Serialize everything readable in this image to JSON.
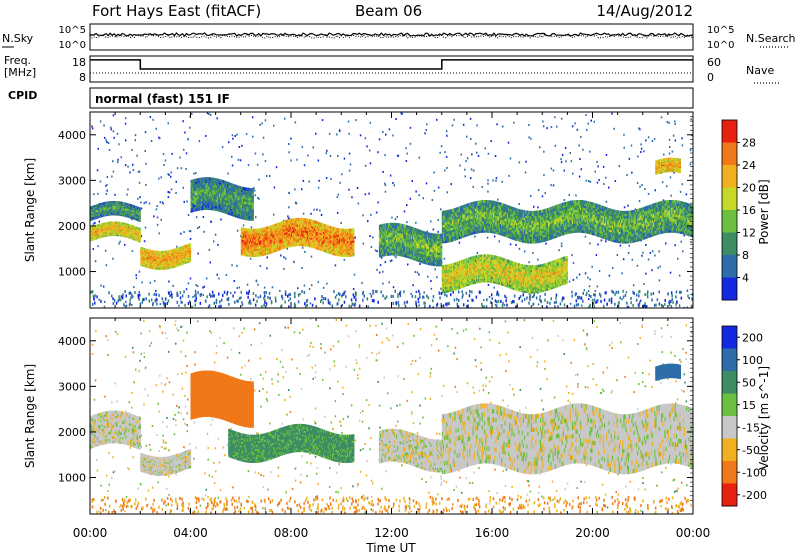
{
  "header": {
    "station": "Fort Hays East (fitACF)",
    "beam": "Beam 06",
    "date": "14/Aug/2012"
  },
  "panels": {
    "nsky": {
      "left_label": "N.Sky",
      "right_label": "N.Search",
      "left_ticks": [
        "10^5",
        "10^0"
      ],
      "right_ticks": [
        "10^5",
        "10^0"
      ]
    },
    "freq": {
      "left_label_top": "Freq.",
      "left_label_bottom": "[MHz]",
      "right_label": "Nave",
      "left_ticks": [
        "18",
        "8"
      ],
      "right_ticks": [
        "60",
        "0"
      ]
    },
    "cpid": {
      "label": "CPID",
      "text": "normal (fast) 151 IF"
    }
  },
  "chart_data": [
    {
      "type": "line",
      "name": "sky-noise-and-search-noise",
      "x_unit": "hours UT",
      "series": [
        {
          "name": "N.Sky",
          "style": "solid",
          "approx_level_fraction": 0.85
        },
        {
          "name": "N.Search",
          "style": "dotted",
          "approx_level_fraction": 0.85
        }
      ]
    },
    {
      "type": "line",
      "name": "frequency-and-nave",
      "ylim_left": [
        8,
        18
      ],
      "ylim_right": [
        0,
        60
      ],
      "series": [
        {
          "name": "Freq.",
          "style": "solid",
          "points": [
            [
              0,
              16.5
            ],
            [
              2.0,
              16.5
            ],
            [
              2.0,
              13.0
            ],
            [
              14.0,
              13.0
            ],
            [
              14.0,
              16.5
            ],
            [
              24,
              16.5
            ]
          ]
        },
        {
          "name": "Nave",
          "style": "dotted",
          "points": [
            [
              0,
              16
            ],
            [
              2.0,
              16
            ],
            [
              2.0,
              16
            ],
            [
              24,
              16
            ]
          ]
        }
      ]
    },
    {
      "type": "heatmap",
      "name": "power",
      "xlabel": "",
      "ylabel": "Slant Range [km]",
      "ylim": [
        200,
        4500
      ],
      "yticks": [
        "1000",
        "2000",
        "3000",
        "4000"
      ],
      "colorbar_label": "Power [dB]",
      "colorbar_ticks": [
        "4",
        "8",
        "12",
        "16",
        "20",
        "24",
        "28"
      ],
      "colorbar_colors": [
        "#1428e0",
        "#2e6ea8",
        "#3c8c64",
        "#6cc040",
        "#c8d828",
        "#f0b020",
        "#f07818",
        "#e82010"
      ],
      "bands": [
        {
          "x": [
            0.0,
            2.0
          ],
          "range": [
            1700,
            2000
          ],
          "power": 22
        },
        {
          "x": [
            0.0,
            2.0
          ],
          "range": [
            2150,
            2450
          ],
          "power": 12
        },
        {
          "x": [
            2.0,
            4.0
          ],
          "range": [
            1200,
            1600
          ],
          "power": 24
        },
        {
          "x": [
            4.0,
            6.5
          ],
          "range": [
            2300,
            3000
          ],
          "power": 12
        },
        {
          "x": [
            6.0,
            10.5
          ],
          "range": [
            1500,
            2100
          ],
          "power": 26
        },
        {
          "x": [
            11.5,
            14.0
          ],
          "range": [
            1300,
            2000
          ],
          "power": 14
        },
        {
          "x": [
            14.0,
            19.0
          ],
          "range": [
            700,
            1300
          ],
          "power": 20
        },
        {
          "x": [
            14.0,
            24.0
          ],
          "range": [
            1800,
            2500
          ],
          "power": 14
        },
        {
          "x": [
            22.5,
            23.5
          ],
          "range": [
            3100,
            3400
          ],
          "power": 24
        }
      ]
    },
    {
      "type": "heatmap",
      "name": "velocity",
      "xlabel": "Time UT",
      "ylabel": "Slant Range [km]",
      "ylim": [
        200,
        4500
      ],
      "yticks": [
        "1000",
        "2000",
        "3000",
        "4000"
      ],
      "xticks": [
        "00:00",
        "04:00",
        "08:00",
        "12:00",
        "16:00",
        "20:00",
        "00:00"
      ],
      "colorbar_label": "Velocity [m s^-1]",
      "colorbar_ticks": [
        "200",
        "100",
        "50",
        "15",
        "-15",
        "-50",
        "-100",
        "-200"
      ],
      "colorbar_colors": [
        "#1428e0",
        "#2e6ea8",
        "#3c8c64",
        "#6cc040",
        "#c8c8c8",
        "#f0b020",
        "#f07818",
        "#e82010"
      ],
      "bands": [
        {
          "x": [
            0.0,
            2.0
          ],
          "range": [
            1700,
            2400
          ],
          "velocity": 0
        },
        {
          "x": [
            2.0,
            4.0
          ],
          "range": [
            1200,
            1600
          ],
          "velocity": 0
        },
        {
          "x": [
            4.0,
            6.5
          ],
          "range": [
            2300,
            3300
          ],
          "velocity": -80
        },
        {
          "x": [
            5.5,
            10.5
          ],
          "range": [
            1500,
            2100
          ],
          "velocity": 60
        },
        {
          "x": [
            11.5,
            14.0
          ],
          "range": [
            1300,
            2000
          ],
          "velocity": 0
        },
        {
          "x": [
            14.0,
            24.0
          ],
          "range": [
            1300,
            2600
          ],
          "velocity": 0
        },
        {
          "x": [
            22.5,
            23.5
          ],
          "range": [
            3100,
            3400
          ],
          "velocity": 180
        }
      ]
    }
  ]
}
